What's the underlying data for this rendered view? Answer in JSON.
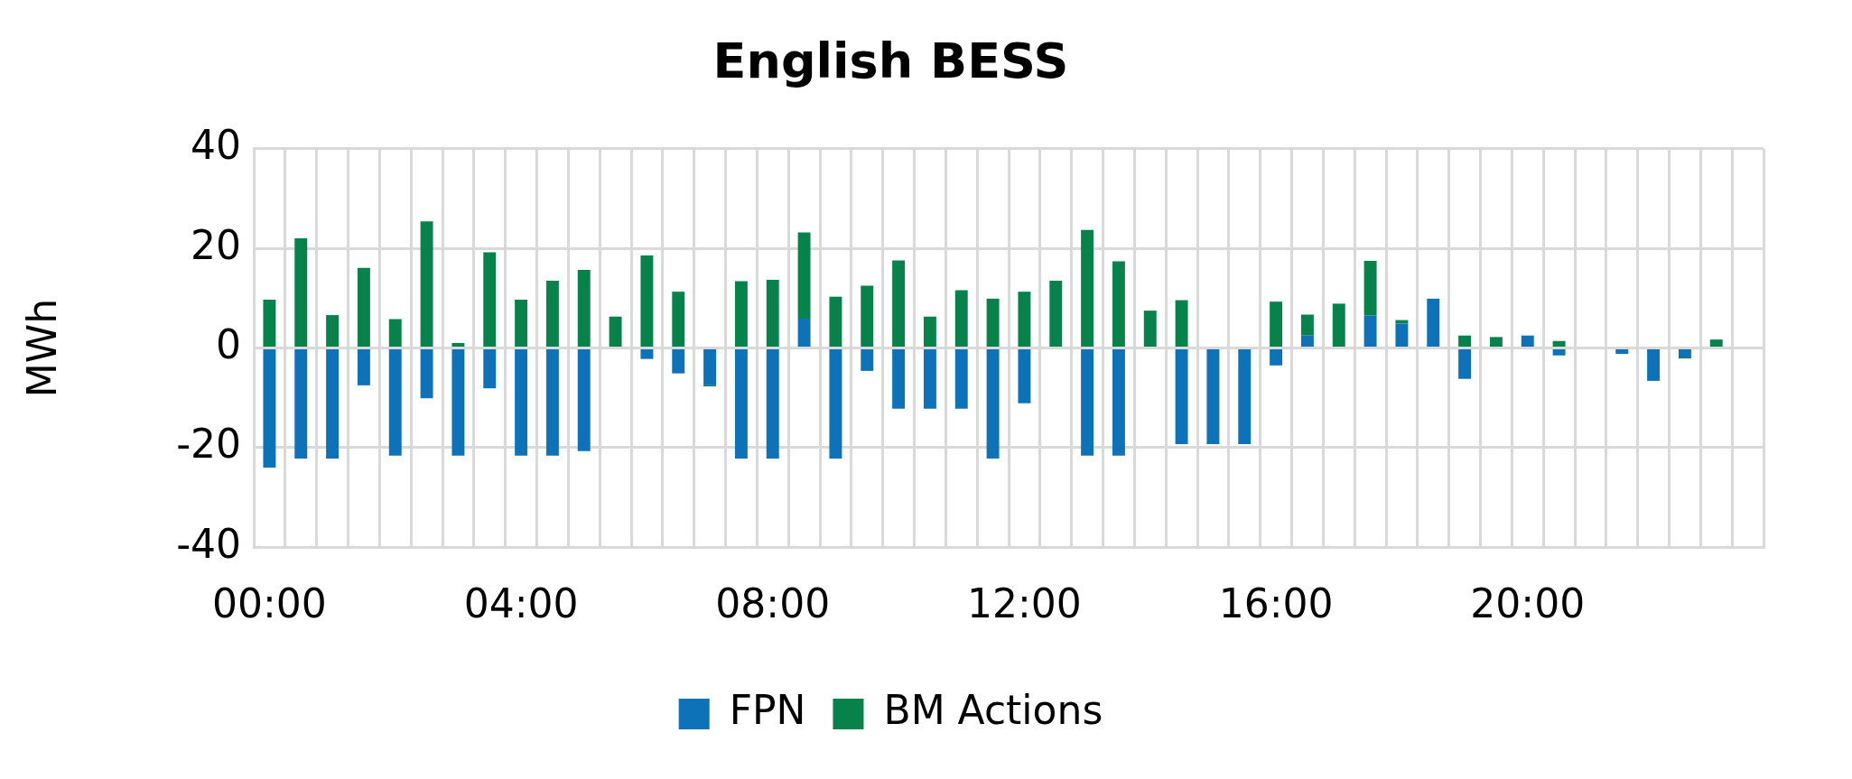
{
  "chart_data": {
    "type": "bar",
    "title": "English BESS",
    "ylabel": "MWh",
    "stacked": true,
    "categories": [
      "00:00",
      null,
      null,
      null,
      null,
      null,
      null,
      null,
      "04:00",
      null,
      null,
      null,
      null,
      null,
      null,
      null,
      "08:00",
      null,
      null,
      null,
      null,
      null,
      null,
      null,
      "12:00",
      null,
      null,
      null,
      null,
      null,
      null,
      null,
      "16:00",
      null,
      null,
      null,
      null,
      null,
      null,
      null,
      "20:00",
      null,
      null,
      null,
      null,
      null,
      null,
      null
    ],
    "series": [
      {
        "name": "FPN",
        "color": "#0e72b8",
        "values": [
          -24.0,
          -22.2,
          -22.2,
          -7.5,
          -21.6,
          -10.1,
          -21.6,
          -8.1,
          -21.6,
          -21.6,
          -20.7,
          null,
          -2.2,
          -5.1,
          -7.5,
          -22.2,
          -22.2,
          5.9,
          -22.2,
          -4.6,
          -12.2,
          -12.2,
          -12.2,
          -22.2,
          -11.1,
          null,
          -21.6,
          -21.6,
          null,
          -19.3,
          -19.3,
          -19.3,
          -3.5,
          2.5,
          null,
          6.5,
          4.9,
          9.9,
          -6.2,
          null,
          2.5,
          -1.5,
          null,
          -1.2,
          -6.6,
          -1.9,
          null,
          null
        ]
      },
      {
        "name": "BM Actions",
        "color": "#07824b",
        "values": [
          9.7,
          22.0,
          6.6,
          16.1,
          5.8,
          25.4,
          1.0,
          19.2,
          9.7,
          13.5,
          15.7,
          6.3,
          18.6,
          11.3,
          -0.2,
          13.4,
          13.7,
          17.3,
          10.3,
          12.5,
          17.6,
          6.3,
          11.6,
          9.9,
          11.3,
          13.5,
          23.7,
          17.4,
          7.5,
          9.6,
          null,
          null,
          9.3,
          4.2,
          8.9,
          11.0,
          0.7,
          null,
          2.5,
          2.2,
          null,
          1.4,
          null,
          null,
          null,
          -0.2,
          1.7,
          null
        ]
      }
    ],
    "ylim": [
      -40,
      40
    ],
    "yticks": [
      -40,
      -20,
      0,
      20,
      40
    ],
    "grid": true,
    "legend": "bottom"
  }
}
